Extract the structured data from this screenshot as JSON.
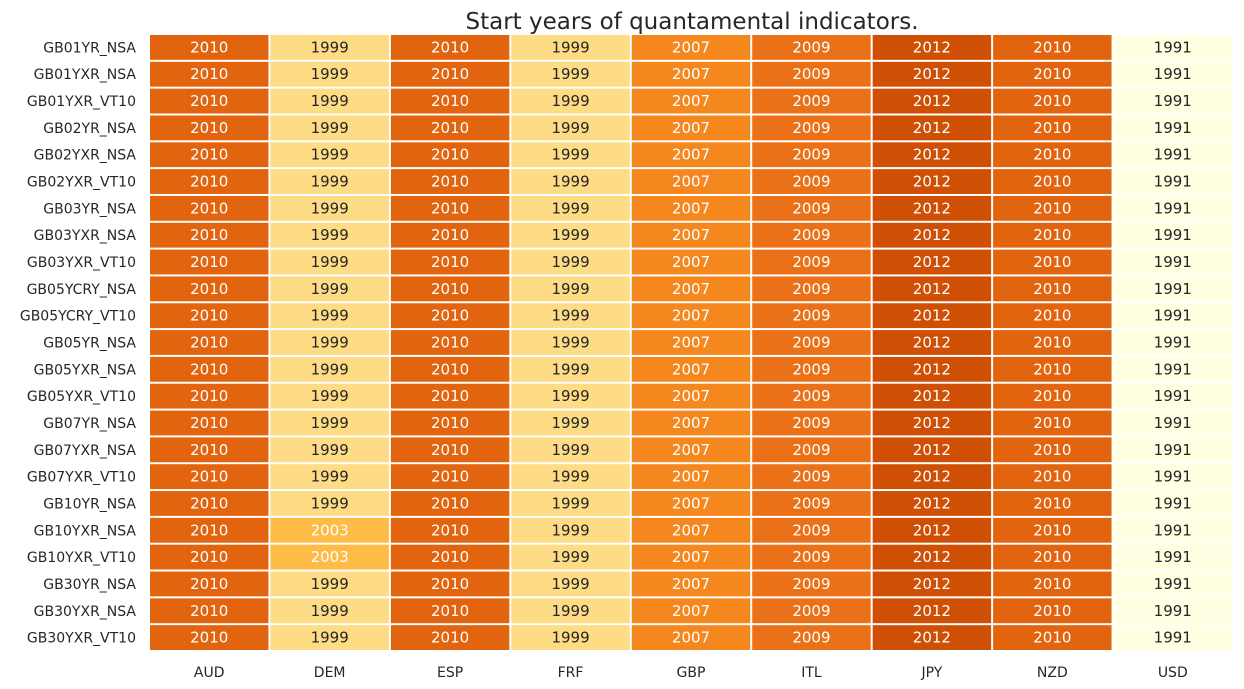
{
  "chart_data": {
    "type": "heatmap",
    "title": "Start years of quantamental indicators.",
    "xlabel": "",
    "ylabel": "",
    "columns": [
      "AUD",
      "DEM",
      "ESP",
      "FRF",
      "GBP",
      "ITL",
      "JPY",
      "NZD",
      "USD"
    ],
    "rows": [
      "GB01YR_NSA",
      "GB01YXR_NSA",
      "GB01YXR_VT10",
      "GB02YR_NSA",
      "GB02YXR_NSA",
      "GB02YXR_VT10",
      "GB03YR_NSA",
      "GB03YXR_NSA",
      "GB03YXR_VT10",
      "GB05YCRY_NSA",
      "GB05YCRY_VT10",
      "GB05YR_NSA",
      "GB05YXR_NSA",
      "GB05YXR_VT10",
      "GB07YR_NSA",
      "GB07YXR_NSA",
      "GB07YXR_VT10",
      "GB10YR_NSA",
      "GB10YXR_NSA",
      "GB10YXR_VT10",
      "GB30YR_NSA",
      "GB30YXR_NSA",
      "GB30YXR_VT10"
    ],
    "values": [
      [
        2010,
        1999,
        2010,
        1999,
        2007,
        2009,
        2012,
        2010,
        1991
      ],
      [
        2010,
        1999,
        2010,
        1999,
        2007,
        2009,
        2012,
        2010,
        1991
      ],
      [
        2010,
        1999,
        2010,
        1999,
        2007,
        2009,
        2012,
        2010,
        1991
      ],
      [
        2010,
        1999,
        2010,
        1999,
        2007,
        2009,
        2012,
        2010,
        1991
      ],
      [
        2010,
        1999,
        2010,
        1999,
        2007,
        2009,
        2012,
        2010,
        1991
      ],
      [
        2010,
        1999,
        2010,
        1999,
        2007,
        2009,
        2012,
        2010,
        1991
      ],
      [
        2010,
        1999,
        2010,
        1999,
        2007,
        2009,
        2012,
        2010,
        1991
      ],
      [
        2010,
        1999,
        2010,
        1999,
        2007,
        2009,
        2012,
        2010,
        1991
      ],
      [
        2010,
        1999,
        2010,
        1999,
        2007,
        2009,
        2012,
        2010,
        1991
      ],
      [
        2010,
        1999,
        2010,
        1999,
        2007,
        2009,
        2012,
        2010,
        1991
      ],
      [
        2010,
        1999,
        2010,
        1999,
        2007,
        2009,
        2012,
        2010,
        1991
      ],
      [
        2010,
        1999,
        2010,
        1999,
        2007,
        2009,
        2012,
        2010,
        1991
      ],
      [
        2010,
        1999,
        2010,
        1999,
        2007,
        2009,
        2012,
        2010,
        1991
      ],
      [
        2010,
        1999,
        2010,
        1999,
        2007,
        2009,
        2012,
        2010,
        1991
      ],
      [
        2010,
        1999,
        2010,
        1999,
        2007,
        2009,
        2012,
        2010,
        1991
      ],
      [
        2010,
        1999,
        2010,
        1999,
        2007,
        2009,
        2012,
        2010,
        1991
      ],
      [
        2010,
        1999,
        2010,
        1999,
        2007,
        2009,
        2012,
        2010,
        1991
      ],
      [
        2010,
        1999,
        2010,
        1999,
        2007,
        2009,
        2012,
        2010,
        1991
      ],
      [
        2010,
        2003,
        2010,
        1999,
        2007,
        2009,
        2012,
        2010,
        1991
      ],
      [
        2010,
        2003,
        2010,
        1999,
        2007,
        2009,
        2012,
        2010,
        1991
      ],
      [
        2010,
        1999,
        2010,
        1999,
        2007,
        2009,
        2012,
        2010,
        1991
      ],
      [
        2010,
        1999,
        2010,
        1999,
        2007,
        2009,
        2012,
        2010,
        1991
      ],
      [
        2010,
        1999,
        2010,
        1999,
        2007,
        2009,
        2012,
        2010,
        1991
      ]
    ],
    "color_scale": {
      "name": "YlOrBr",
      "vmin": 1991,
      "vmax": 2012,
      "stops": [
        {
          "value": 1991,
          "color": "#ffffe2"
        },
        {
          "value": 1999,
          "color": "#fedb85"
        },
        {
          "value": 2003,
          "color": "#febb45"
        },
        {
          "value": 2007,
          "color": "#f5871f"
        },
        {
          "value": 2009,
          "color": "#eb7119"
        },
        {
          "value": 2010,
          "color": "#e2640f"
        },
        {
          "value": 2012,
          "color": "#cf4f05"
        }
      ]
    },
    "colorbar": false,
    "gridlines": "white cell separators"
  }
}
